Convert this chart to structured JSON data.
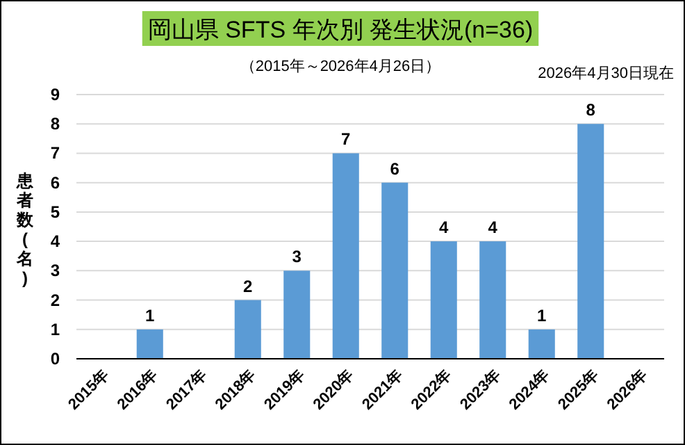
{
  "chart_data": {
    "type": "bar",
    "title": "岡山県 SFTS 年次別 発生状況(n=36)",
    "subtitle": "（2015年～2026年4月26日）",
    "ylabel": "患者数(名)",
    "annotations": [
      "2026年4月30日現在"
    ],
    "categories": [
      "2015年",
      "2016年",
      "2017年",
      "2018年",
      "2019年",
      "2020年",
      "2021年",
      "2022年",
      "2023年",
      "2024年",
      "2025年",
      "2026年"
    ],
    "values": [
      0,
      1,
      0,
      2,
      3,
      7,
      6,
      4,
      4,
      1,
      8,
      0
    ],
    "value_labels": [
      null,
      "1",
      null,
      "2",
      "3",
      "7",
      "6",
      "4",
      "4",
      "1",
      "8",
      null
    ],
    "color": "#5b9bd5",
    "ylim": [
      0,
      9
    ],
    "yticks": [
      0,
      1,
      2,
      3,
      4,
      5,
      6,
      7,
      8,
      9
    ],
    "grid": "y"
  }
}
